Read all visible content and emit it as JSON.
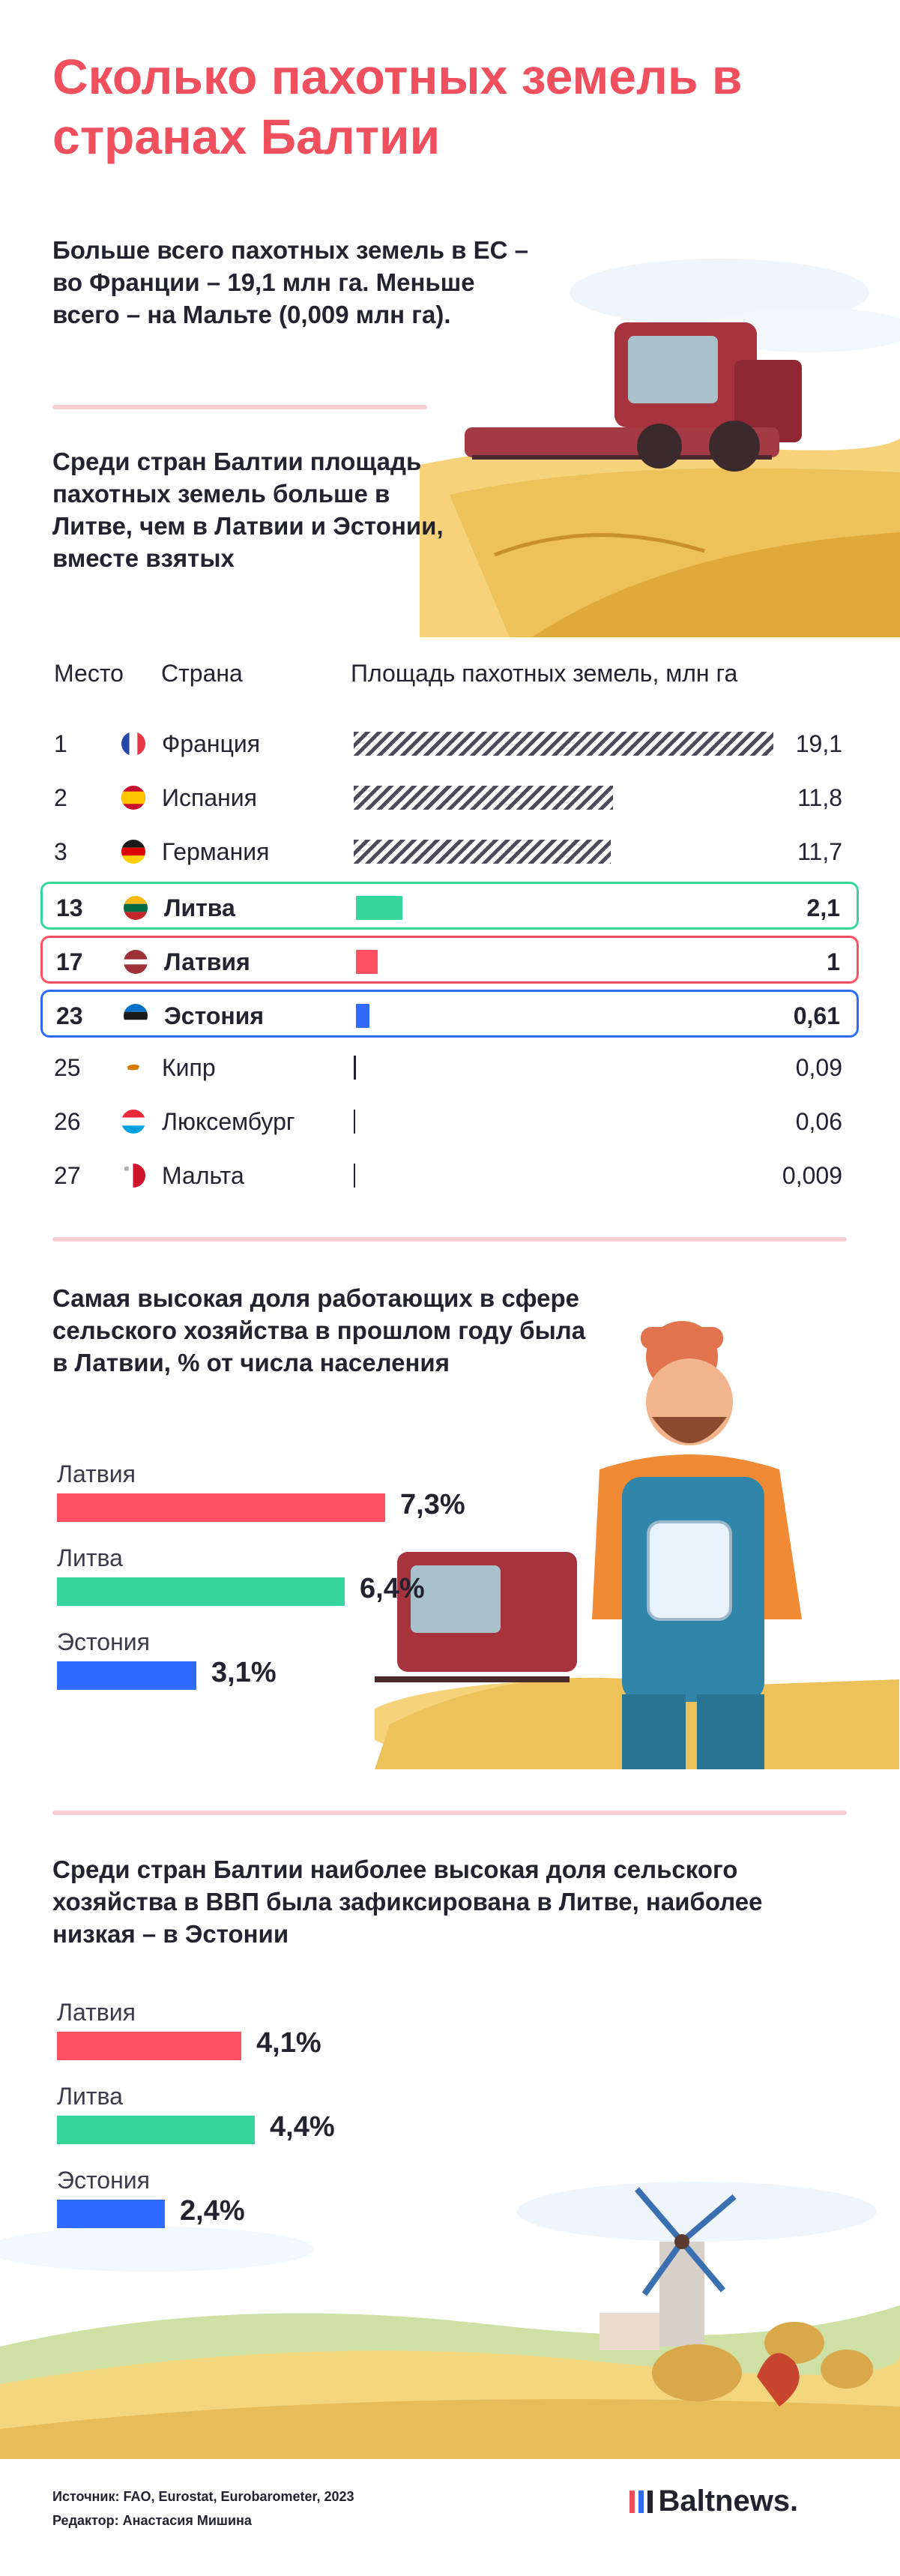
{
  "colors": {
    "title": "#f0505e",
    "latvia": "#ff4f62",
    "lithuania": "#35d59b",
    "estonia": "#2f6bff",
    "hatch": "#4b4b5a",
    "divider": "#f8cfd4"
  },
  "title": "Сколько пахотных земель в странах Балтии",
  "intro_text": "Больше всего пахотных земель в ЕС – во Франции – 19,1 млн га. Меньше всего – на Мальте (0,009 млн га).",
  "section1": {
    "subtitle": "Среди стран Балтии площадь пахотных земель больше в Литве, чем в Латвии и Эстонии, вместе взятых",
    "headers": {
      "rank": "Место",
      "country": "Страна",
      "area": "Площадь пахотных земель, млн га"
    }
  },
  "section2": {
    "title": "Самая высокая доля работающих в сфере сельского хозяйства в прошлом году была в Латвии, % от числа населения"
  },
  "section3": {
    "title": "Среди стран Балтии наиболее высокая доля сельского хозяйства в ВВП была зафиксирована в Литве, наиболее низкая – в Эстонии"
  },
  "chart_data": [
    {
      "type": "bar",
      "orientation": "horizontal",
      "xlabel": "Площадь пахотных земель, млн га",
      "ranks": [
        "1",
        "2",
        "3",
        "13",
        "17",
        "23",
        "25",
        "26",
        "27"
      ],
      "categories": [
        "Франция",
        "Испания",
        "Германия",
        "Литва",
        "Латвия",
        "Эстония",
        "Кипр",
        "Люксембург",
        "Мальта"
      ],
      "values": [
        19.1,
        11.8,
        11.7,
        2.1,
        1,
        0.61,
        0.09,
        0.06,
        0.009
      ],
      "labels": [
        "19,1",
        "11,8",
        "11,7",
        "2,1",
        "1",
        "0,61",
        "0,09",
        "0,06",
        "0,009"
      ],
      "flags": [
        "flag-france-icon",
        "flag-spain-icon",
        "flag-germany-icon",
        "flag-lithuania-icon",
        "flag-latvia-icon",
        "flag-estonia-icon",
        "flag-cyprus-icon",
        "flag-luxembourg-icon",
        "flag-malta-icon"
      ]
    },
    {
      "type": "bar",
      "orientation": "horizontal",
      "categories": [
        "Латвия",
        "Литва",
        "Эстония"
      ],
      "values": [
        7.3,
        6.4,
        3.1
      ],
      "labels": [
        "7,3%",
        "6,4%",
        "3,1%"
      ]
    },
    {
      "type": "bar",
      "orientation": "horizontal",
      "categories": [
        "Латвия",
        "Литва",
        "Эстония"
      ],
      "values": [
        4.1,
        4.4,
        2.4
      ],
      "labels": [
        "4,1%",
        "4,4%",
        "2,4%"
      ]
    }
  ],
  "footer": {
    "source": "Источник: FAO, Eurostat, Eurobarometer, 2023",
    "editor": "Редактор: Анастасия Мишина",
    "brand": "Baltnews."
  }
}
